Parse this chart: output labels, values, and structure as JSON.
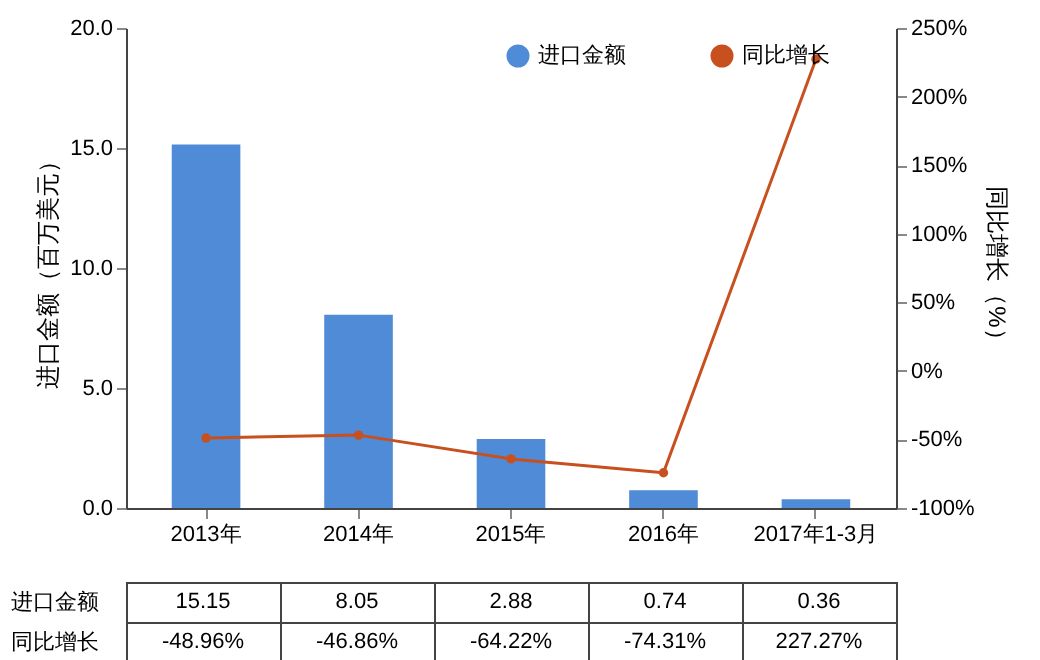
{
  "chart_data": {
    "type": "bar",
    "categories": [
      "2013年",
      "2014年",
      "2015年",
      "2016年",
      "2017年1-3月"
    ],
    "ylabel": "进口金额（百万美元）",
    "y2label": "同比增长（%）",
    "ylim": [
      0,
      20
    ],
    "yticks": [
      {
        "value": 0,
        "label": "0.0"
      },
      {
        "value": 5,
        "label": "5.0"
      },
      {
        "value": 10,
        "label": "10.0"
      },
      {
        "value": 15,
        "label": "15.0"
      },
      {
        "value": 20,
        "label": "20.0"
      }
    ],
    "y2lim": [
      -100,
      250
    ],
    "y2ticks": [
      {
        "value": -100,
        "label": "-100%"
      },
      {
        "value": -50,
        "label": "-50%"
      },
      {
        "value": 0,
        "label": "0%"
      },
      {
        "value": 50,
        "label": "50%"
      },
      {
        "value": 100,
        "label": "100%"
      },
      {
        "value": 150,
        "label": "150%"
      },
      {
        "value": 200,
        "label": "200%"
      },
      {
        "value": 250,
        "label": "250%"
      }
    ],
    "legend": "top right",
    "marker": "circle",
    "series": [
      {
        "name": "进口金额",
        "color": "#4f8bd6",
        "values": [
          15.15,
          8.05,
          2.88,
          0.74,
          0.36
        ],
        "value_labels": [
          "15.15",
          "8.05",
          "2.88",
          "0.74",
          "0.36"
        ]
      },
      {
        "name": "同比增长",
        "type": "line",
        "axis": "y2",
        "color": "#c8501e",
        "values": [
          -48.96,
          -46.86,
          -64.22,
          -74.31,
          227.27
        ],
        "value_labels": [
          "-48.96%",
          "-46.86%",
          "-64.22%",
          "-74.31%",
          "227.27%"
        ]
      }
    ]
  }
}
